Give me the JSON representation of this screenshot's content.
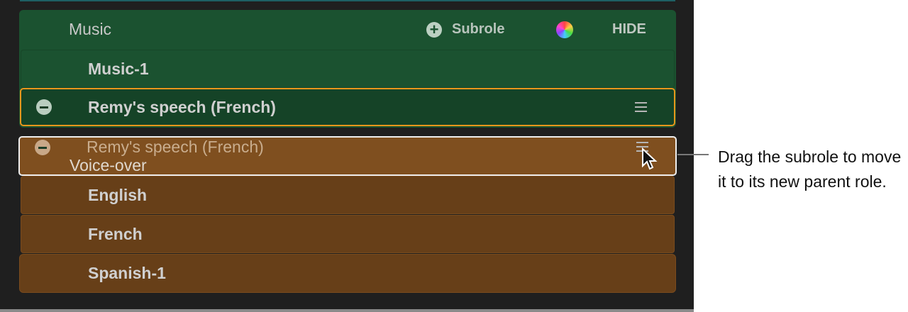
{
  "music_role": {
    "name": "Music",
    "add_subrole_label": "Subrole",
    "hide_label": "HIDE",
    "color": "#1b5230"
  },
  "music_subroles": [
    {
      "label": "Music-1"
    },
    {
      "label": "Remy's speech (French)"
    }
  ],
  "dragged_item": {
    "label": "Remy's speech (French)"
  },
  "voiceover_role": {
    "name": "Voice-over",
    "color": "#7f4f1f"
  },
  "voiceover_subroles": [
    {
      "label": "English"
    },
    {
      "label": "French"
    },
    {
      "label": "Spanish-1"
    }
  ],
  "callout": {
    "text": "Drag the subrole to move it to its new parent role."
  }
}
